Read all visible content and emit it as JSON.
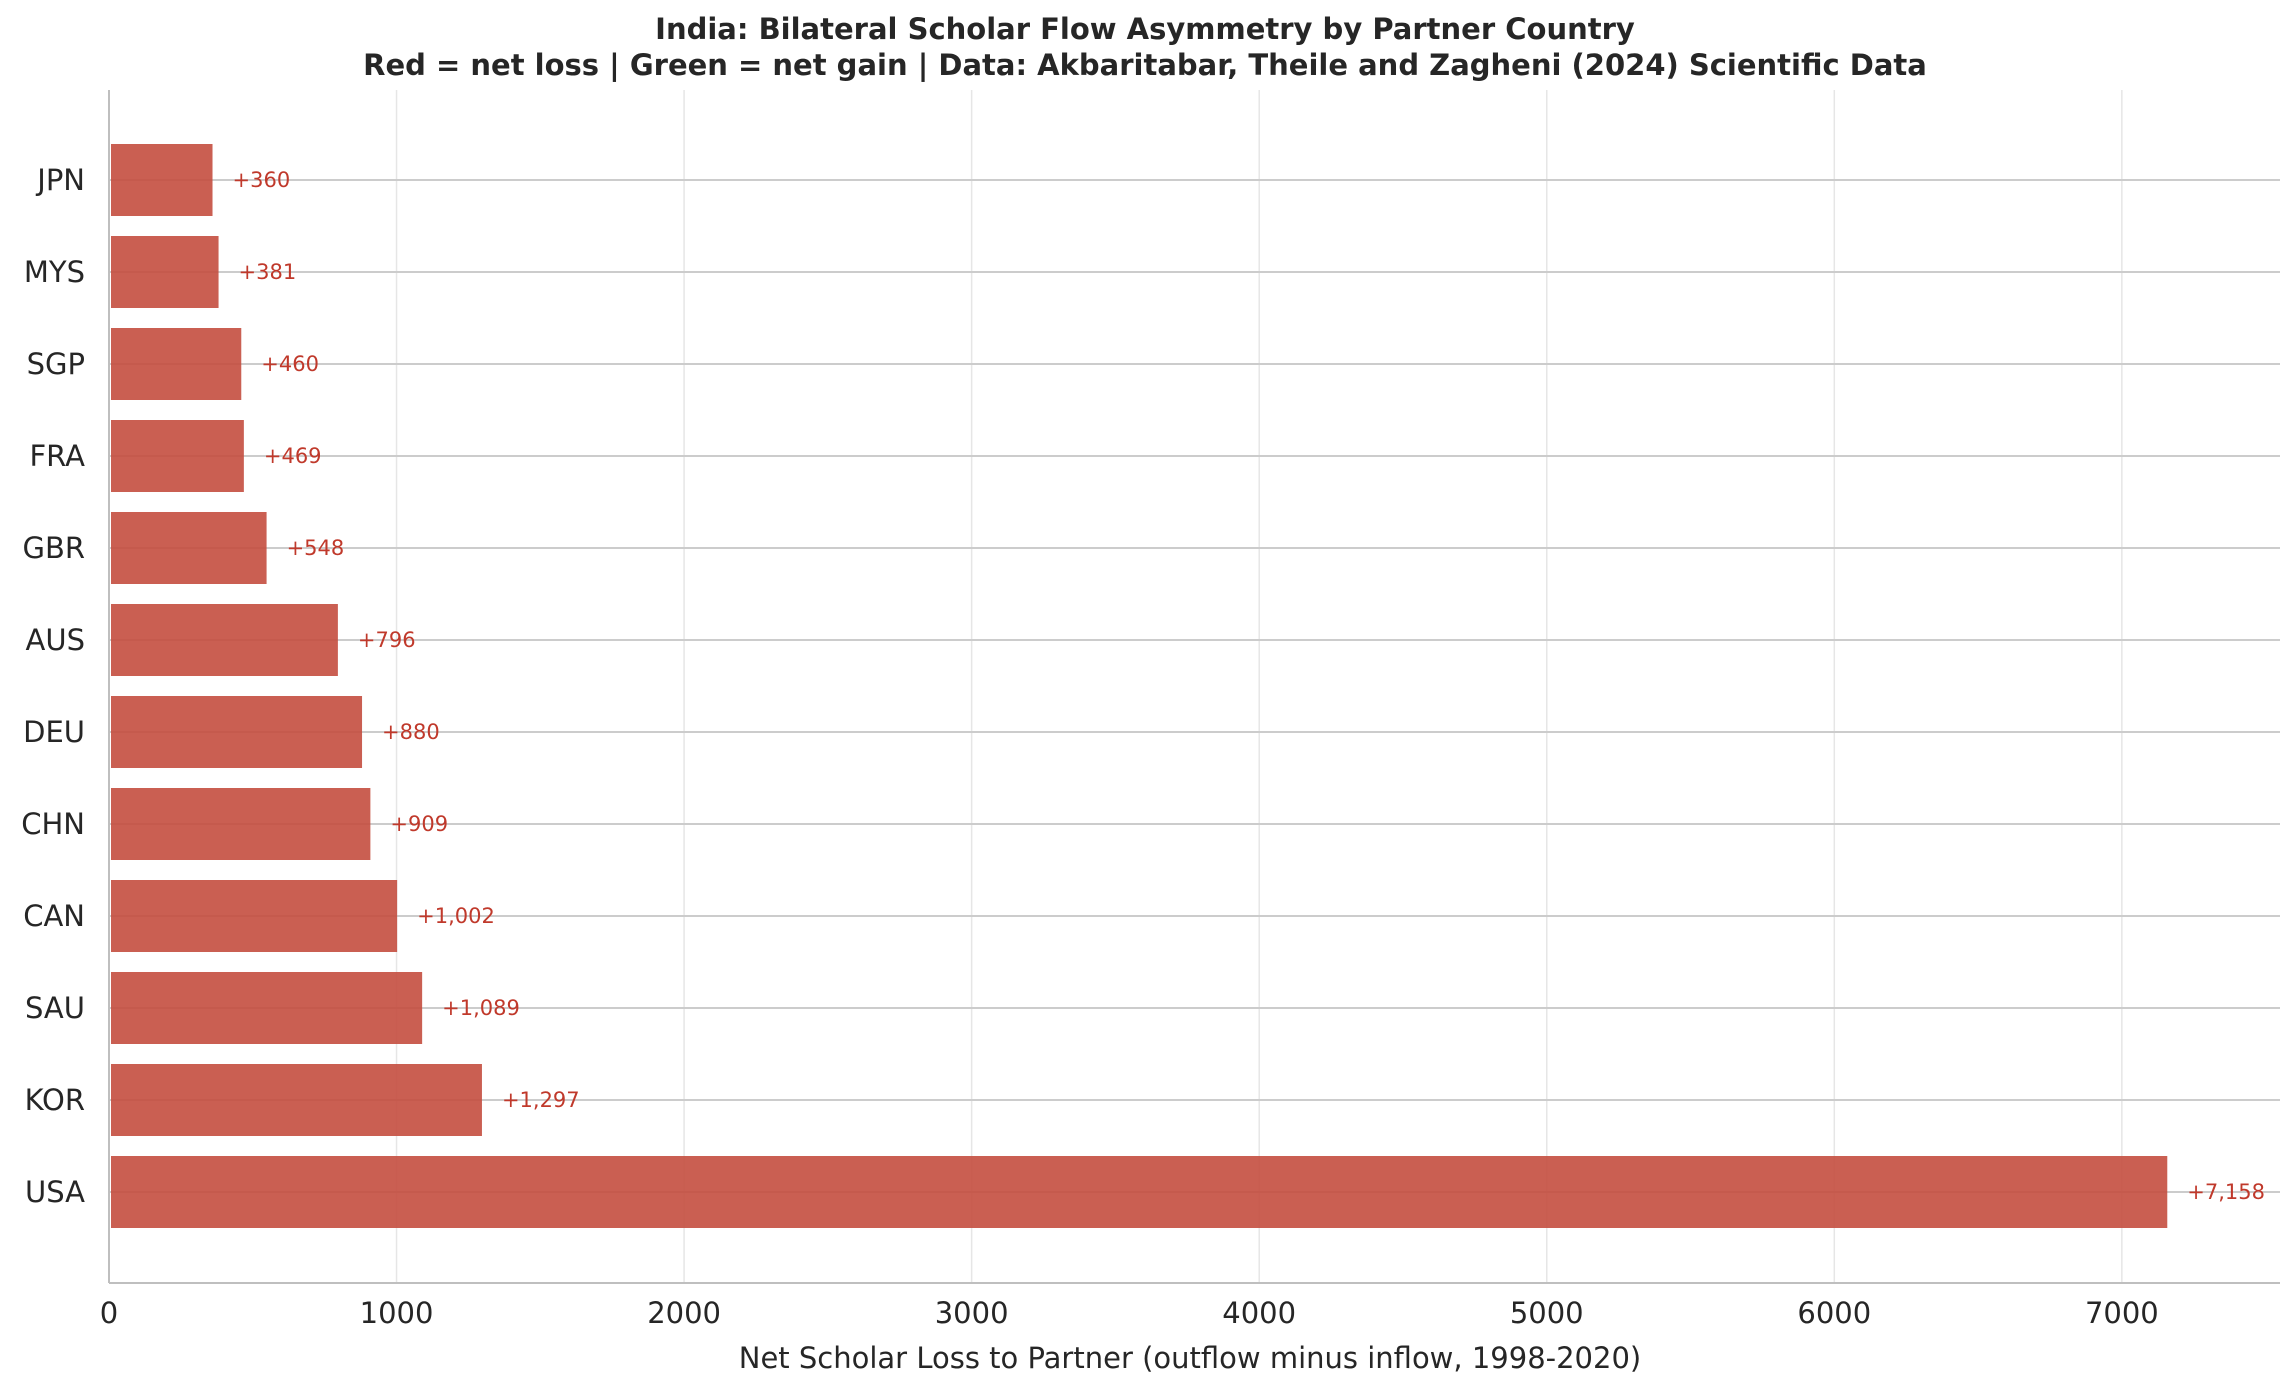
{
  "chart_data": {
    "type": "bar",
    "orientation": "horizontal",
    "title": "India: Bilateral Scholar Flow Asymmetry by Partner Country",
    "subtitle": "Red = net loss | Green = net gain | Data: Akbaritabar, Theile and Zagheni (2024) Scientific Data",
    "xlabel": "Net Scholar Loss to Partner (outflow minus inflow, 1998-2020)",
    "ylabel": "",
    "xlim": [
      0,
      7550
    ],
    "xticks": [
      0,
      1000,
      2000,
      3000,
      4000,
      5000,
      6000,
      7000
    ],
    "xtick_labels": [
      "0",
      "1000",
      "2000",
      "3000",
      "4000",
      "5000",
      "6000",
      "7000"
    ],
    "grid": "vertical and horizontal, light gray",
    "categories": [
      "JPN",
      "MYS",
      "SGP",
      "FRA",
      "GBR",
      "AUS",
      "DEU",
      "CHN",
      "CAN",
      "SAU",
      "KOR",
      "USA"
    ],
    "values": [
      360,
      381,
      460,
      469,
      548,
      796,
      880,
      909,
      1002,
      1089,
      1297,
      7158
    ],
    "value_labels": [
      "+360",
      "+381",
      "+460",
      "+469",
      "+548",
      "+796",
      "+880",
      "+909",
      "+1,002",
      "+1,089",
      "+1,297",
      "+7,158"
    ],
    "colors": {
      "loss": "#c44e3f",
      "label": "#c0392b",
      "grid": "#e6e6e6",
      "rowline": "#cccccc",
      "axis": "#bfbfbf",
      "text": "#262626"
    }
  }
}
